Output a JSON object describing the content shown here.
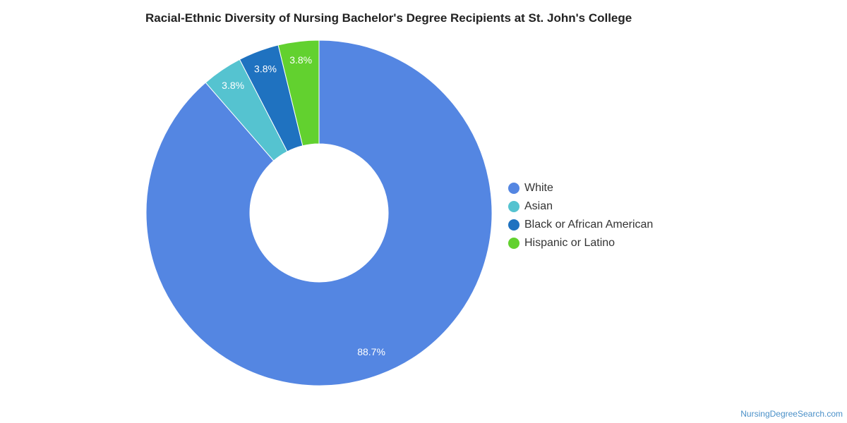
{
  "chart_data": {
    "type": "pie",
    "title": "Racial-Ethnic Diversity of Nursing Bachelor's Degree Recipients at St. John's College",
    "donut": true,
    "legend_position": "right",
    "categories": [
      "White",
      "Asian",
      "Black or African American",
      "Hispanic or Latino"
    ],
    "values": [
      88.7,
      3.8,
      3.8,
      3.8
    ],
    "labels": [
      "88.7%",
      "3.8%",
      "3.8%",
      "3.8%"
    ],
    "colors": [
      "#5486e2",
      "#55c3d0",
      "#1f72c0",
      "#62d12f"
    ]
  },
  "footer": {
    "source": "NursingDegreeSearch.com"
  }
}
